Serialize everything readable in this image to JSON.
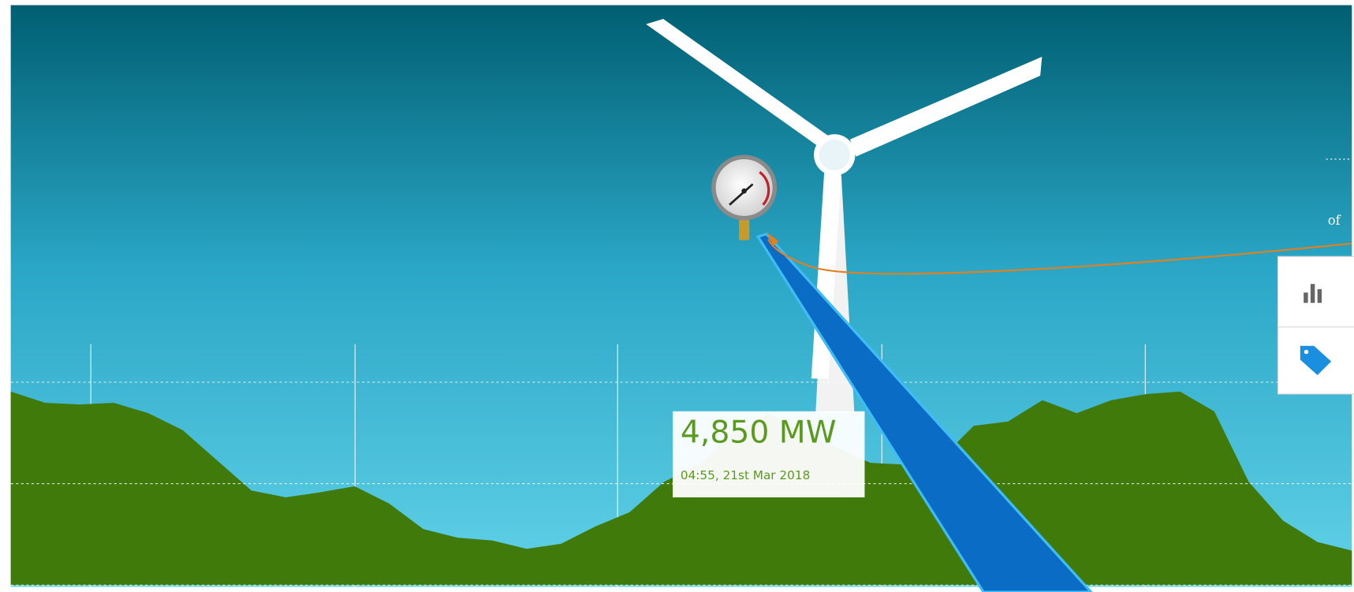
{
  "chart_data": {
    "type": "area",
    "color": "#3f7a0a",
    "values": [
      7630,
      7190,
      7120,
      7190,
      6780,
      6110,
      4920,
      3730,
      3460,
      3660,
      3900,
      3220,
      2210,
      1870,
      1760,
      1430,
      1630,
      2310,
      2880,
      4070,
      4750,
      5940,
      6780,
      6110,
      5430,
      4820,
      4750,
      4920,
      6280,
      6450,
      7290,
      6780,
      7290,
      7530,
      7630,
      6850,
      4070,
      2540,
      1700,
      1360
    ],
    "ylim": [
      0,
      9500
    ],
    "yticks": [
      0,
      4000,
      8000
    ],
    "grid": true
  },
  "tooltip": {
    "value": "4,850 MW",
    "time": "04:55, 21st Mar 2018"
  },
  "side_text": "of"
}
